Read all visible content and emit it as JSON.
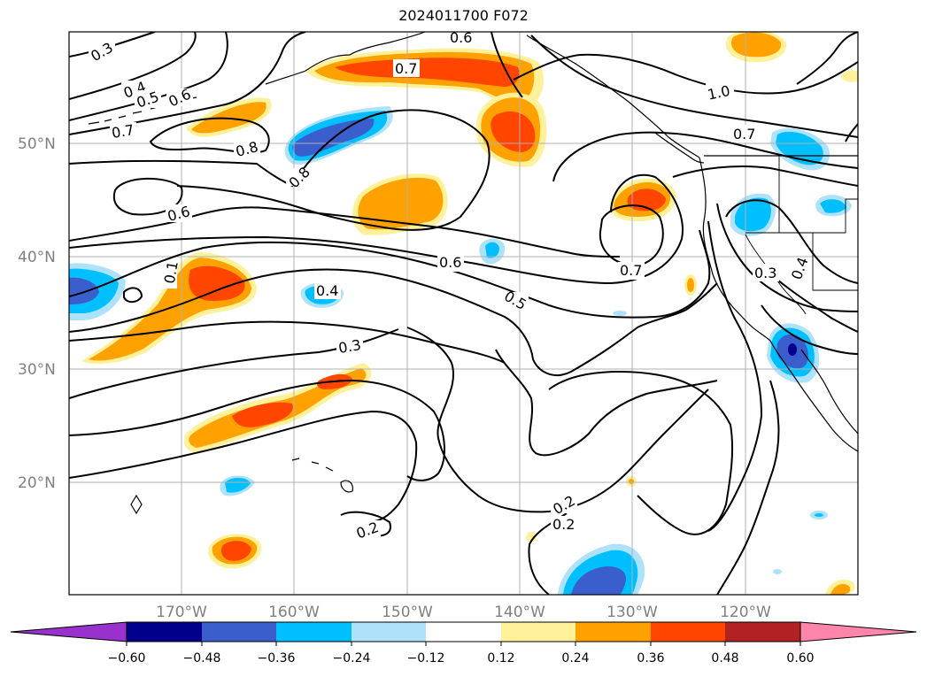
{
  "title": "2024011700 F072",
  "map": {
    "lat_labels": [
      "50°N",
      "40°N",
      "30°N",
      "20°N"
    ],
    "lon_labels": [
      "170°W",
      "160°W",
      "150°W",
      "140°W",
      "130°W",
      "120°W"
    ],
    "contour_labels": [
      "0.3",
      "0.4",
      "0.5",
      "0.6",
      "0.7",
      "0.6",
      "0.7",
      "1.0",
      "0.7",
      "0.8",
      "0.8",
      "0.6",
      "0.6",
      "0.7",
      "0.4",
      "0.5",
      "0.3",
      "0.3",
      "0.4",
      "0.2",
      "0.2",
      "0.2",
      "0.1"
    ],
    "colors": {
      "pos_1": "#fff09a",
      "pos_2": "#ffa200",
      "pos_3": "#ff4500",
      "neg_1": "#ade2fa",
      "neg_2": "#00bfff",
      "neg_3": "#3a5fcd",
      "neg_4": "#00008b"
    }
  },
  "colorbar": {
    "ticks": [
      "−0.60",
      "−0.48",
      "−0.36",
      "−0.24",
      "−0.12",
      "0.12",
      "0.24",
      "0.36",
      "0.48",
      "0.60"
    ],
    "colors": [
      "#9932cc",
      "#00008b",
      "#3a5fcd",
      "#00bfff",
      "#ade2fa",
      "#ffffff",
      "#fff09a",
      "#ffa200",
      "#ff4500",
      "#b22222",
      "#ff85ab"
    ]
  }
}
